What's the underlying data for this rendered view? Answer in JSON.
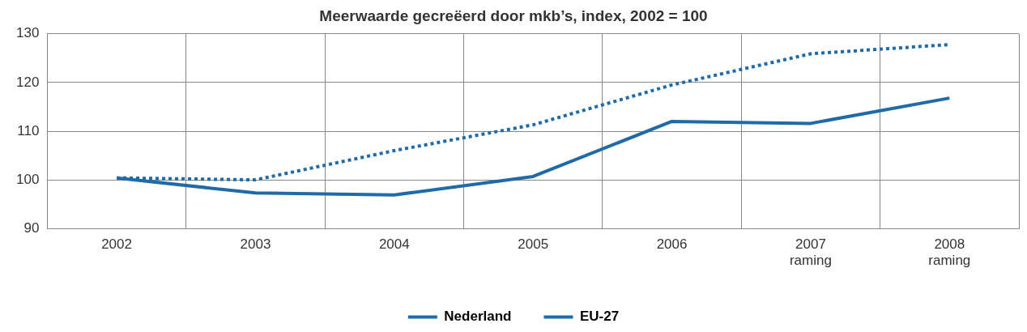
{
  "chart_data": {
    "type": "line",
    "title": "Meerwaarde gecreëerd door mkb’s, index, 2002 = 100",
    "categories": [
      "2002",
      "2003",
      "2004",
      "2005",
      "2006",
      "2007\nraming",
      "2008\nraming"
    ],
    "series": [
      {
        "name": "Nederland",
        "color": "#1f6aa8",
        "line_style": "solid",
        "values": [
          100.4,
          97.3,
          96.9,
          100.7,
          112.0,
          111.6,
          116.8
        ]
      },
      {
        "name": "EU-27",
        "color": "#1f6aa8",
        "line_style": "dotted",
        "values": [
          100.4,
          100.0,
          106.0,
          111.3,
          119.5,
          125.9,
          127.8
        ]
      }
    ],
    "ylim": [
      90,
      130
    ],
    "yticks": [
      90,
      100,
      110,
      120,
      130
    ],
    "grid": true,
    "legend": "bottom",
    "marker": "none"
  }
}
